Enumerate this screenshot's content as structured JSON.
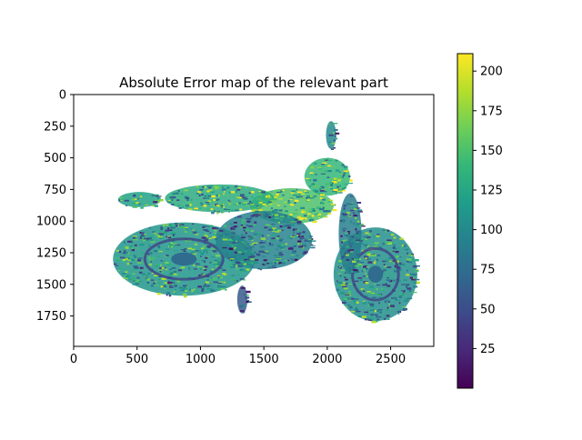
{
  "chart_data": {
    "type": "heatmap",
    "title": "Absolute Error map of the relevant part",
    "xlabel": "",
    "ylabel": "",
    "xlim": [
      0,
      2840
    ],
    "ylim": [
      1990,
      0
    ],
    "x_ticks": [
      {
        "value": 0,
        "label": "0"
      },
      {
        "value": 500,
        "label": "500"
      },
      {
        "value": 1000,
        "label": "1000"
      },
      {
        "value": 1500,
        "label": "1500"
      },
      {
        "value": 2000,
        "label": "2000"
      },
      {
        "value": 2500,
        "label": "2500"
      }
    ],
    "y_ticks": [
      {
        "value": 0,
        "label": "0"
      },
      {
        "value": 250,
        "label": "250"
      },
      {
        "value": 500,
        "label": "500"
      },
      {
        "value": 750,
        "label": "750"
      },
      {
        "value": 1000,
        "label": "1000"
      },
      {
        "value": 1250,
        "label": "1250"
      },
      {
        "value": 1500,
        "label": "1500"
      },
      {
        "value": 1750,
        "label": "1750"
      }
    ],
    "colorbar": {
      "colormap": "viridis",
      "range": [
        0,
        211
      ],
      "ticks": [
        {
          "value": 25,
          "label": "25"
        },
        {
          "value": 50,
          "label": "50"
        },
        {
          "value": 75,
          "label": "75"
        },
        {
          "value": 100,
          "label": "100"
        },
        {
          "value": 125,
          "label": "125"
        },
        {
          "value": 150,
          "label": "150"
        },
        {
          "value": 175,
          "label": "175"
        },
        {
          "value": 200,
          "label": "200"
        }
      ]
    },
    "viridis_stops": [
      "#440154",
      "#482878",
      "#3e4989",
      "#31688e",
      "#26828e",
      "#1f9e89",
      "#35b779",
      "#6ece58",
      "#b5de2b",
      "#fde725"
    ],
    "regions": [
      {
        "name": "rear-wheel",
        "shape": "ellipse",
        "cx": 870,
        "cy": 1300,
        "rx": 560,
        "ry": 290,
        "value": 110
      },
      {
        "name": "front-wheel",
        "shape": "ellipse",
        "cx": 2380,
        "cy": 1420,
        "rx": 330,
        "ry": 370,
        "value": 105
      },
      {
        "name": "tank",
        "shape": "ellipse",
        "cx": 1720,
        "cy": 880,
        "rx": 330,
        "ry": 140,
        "value": 150
      },
      {
        "name": "seat",
        "shape": "ellipse",
        "cx": 1150,
        "cy": 820,
        "rx": 430,
        "ry": 110,
        "value": 130
      },
      {
        "name": "engine",
        "shape": "ellipse",
        "cx": 1500,
        "cy": 1150,
        "rx": 380,
        "ry": 230,
        "value": 95
      },
      {
        "name": "tail",
        "shape": "ellipse",
        "cx": 520,
        "cy": 830,
        "rx": 170,
        "ry": 60,
        "value": 120
      },
      {
        "name": "headlight",
        "shape": "ellipse",
        "cx": 2000,
        "cy": 650,
        "rx": 180,
        "ry": 150,
        "value": 140
      },
      {
        "name": "fork",
        "shape": "ellipse",
        "cx": 2180,
        "cy": 1100,
        "rx": 90,
        "ry": 320,
        "value": 90
      },
      {
        "name": "mirror",
        "shape": "ellipse",
        "cx": 2030,
        "cy": 320,
        "rx": 40,
        "ry": 110,
        "value": 100
      },
      {
        "name": "kickstand",
        "shape": "ellipse",
        "cx": 1330,
        "cy": 1620,
        "rx": 40,
        "ry": 110,
        "value": 60
      }
    ]
  }
}
